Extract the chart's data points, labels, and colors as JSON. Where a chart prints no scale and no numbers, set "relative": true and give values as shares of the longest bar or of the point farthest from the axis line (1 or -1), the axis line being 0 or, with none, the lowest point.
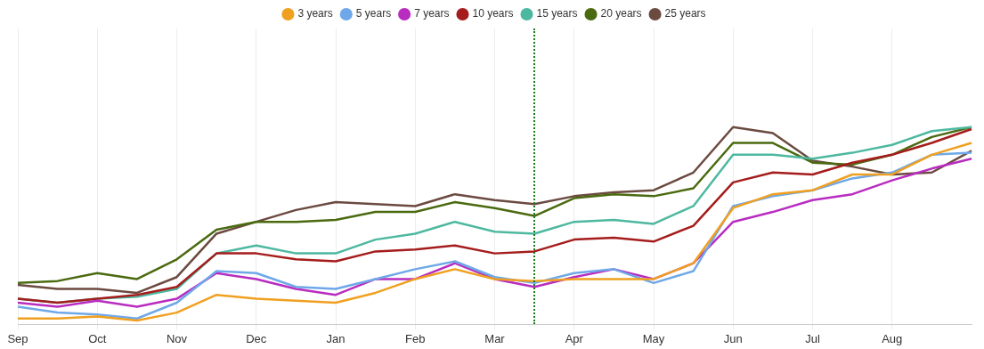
{
  "chart_data": {
    "type": "line",
    "relative": true,
    "grid": "x",
    "legend": "top",
    "marker": "none",
    "line_style": "solid",
    "categories": [
      "Sep",
      null,
      "Oct",
      null,
      "Nov",
      null,
      "Dec",
      null,
      "Jan",
      null,
      "Feb",
      null,
      "Mar",
      null,
      "Apr",
      null,
      "May",
      null,
      "Jun",
      null,
      "Jul",
      null,
      "Aug",
      null,
      null
    ],
    "series": [
      {
        "name": "3 years",
        "color": "#f0a020",
        "values": [
          0.03,
          0.03,
          0.04,
          0.02,
          0.06,
          0.15,
          0.13,
          0.12,
          0.11,
          0.16,
          0.23,
          0.28,
          0.23,
          0.22,
          0.23,
          0.23,
          0.23,
          0.31,
          0.59,
          0.66,
          0.68,
          0.76,
          0.76,
          0.86,
          0.92
        ]
      },
      {
        "name": "5 years",
        "color": "#6fa8e8",
        "values": [
          0.09,
          0.06,
          0.05,
          0.03,
          0.11,
          0.27,
          0.26,
          0.19,
          0.18,
          0.23,
          0.28,
          0.32,
          0.24,
          0.21,
          0.26,
          0.28,
          0.21,
          0.27,
          0.6,
          0.65,
          0.68,
          0.74,
          0.77,
          0.86,
          0.87
        ]
      },
      {
        "name": "7 years",
        "color": "#b82cc0",
        "values": [
          0.11,
          0.09,
          0.12,
          0.09,
          0.13,
          0.26,
          0.23,
          0.18,
          0.15,
          0.23,
          0.23,
          0.31,
          0.23,
          0.19,
          0.24,
          0.28,
          0.23,
          0.31,
          0.52,
          0.57,
          0.63,
          0.66,
          0.73,
          0.79,
          0.84
        ]
      },
      {
        "name": "10 years",
        "color": "#a51c1c",
        "values": [
          0.13,
          0.11,
          0.13,
          0.15,
          0.19,
          0.36,
          0.36,
          0.33,
          0.32,
          0.37,
          0.38,
          0.4,
          0.36,
          0.37,
          0.43,
          0.44,
          0.42,
          0.5,
          0.72,
          0.77,
          0.76,
          0.82,
          0.86,
          0.92,
          0.99
        ]
      },
      {
        "name": "15 years",
        "color": "#4db8a0",
        "values": [
          0.13,
          0.11,
          0.13,
          0.14,
          0.18,
          0.36,
          0.4,
          0.36,
          0.36,
          0.43,
          0.46,
          0.52,
          0.47,
          0.46,
          0.52,
          0.53,
          0.51,
          0.6,
          0.86,
          0.86,
          0.84,
          0.87,
          0.91,
          0.98,
          1
        ]
      },
      {
        "name": "20 years",
        "color": "#4a6a10",
        "values": [
          0.21,
          0.22,
          0.26,
          0.23,
          0.33,
          0.48,
          0.52,
          0.52,
          0.53,
          0.57,
          0.57,
          0.62,
          0.59,
          0.55,
          0.64,
          0.66,
          0.65,
          0.69,
          0.92,
          0.92,
          0.82,
          0.81,
          0.86,
          0.95,
          1
        ]
      },
      {
        "name": "25 years",
        "color": "#6b4a40",
        "values": [
          0.2,
          0.18,
          0.18,
          0.16,
          0.24,
          0.46,
          0.52,
          0.58,
          0.62,
          0.61,
          0.6,
          0.66,
          0.63,
          0.61,
          0.65,
          0.67,
          0.68,
          0.77,
          1,
          0.97,
          0.83,
          0.8,
          0.76,
          0.77,
          0.88
        ]
      }
    ]
  }
}
